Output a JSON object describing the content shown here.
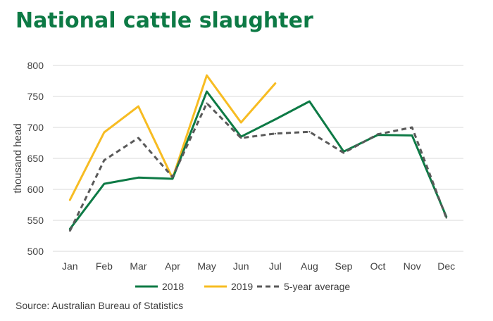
{
  "title": "National cattle slaughter",
  "source": "Source: Australian Bureau of Statistics",
  "chart_data": {
    "type": "line",
    "title": "National cattle slaughter",
    "ylabel": "thousand head",
    "xlabel": "",
    "categories": [
      "Jan",
      "Feb",
      "Mar",
      "Apr",
      "May",
      "Jun",
      "Jul",
      "Aug",
      "Sep",
      "Oct",
      "Nov",
      "Dec"
    ],
    "ylim": [
      500,
      800
    ],
    "yticks": [
      500,
      550,
      600,
      650,
      700,
      750,
      800
    ],
    "grid": true,
    "legend_position": "bottom",
    "series": [
      {
        "name": "2018",
        "color": "#0d7a45",
        "style": "solid",
        "values": [
          536,
          609,
          619,
          617,
          758,
          685,
          713,
          742,
          661,
          688,
          687,
          556
        ]
      },
      {
        "name": "2019",
        "color": "#f7bc22",
        "style": "solid",
        "values": [
          583,
          692,
          734,
          618,
          784,
          708,
          771,
          null,
          null,
          null,
          null,
          null
        ]
      },
      {
        "name": "5-year average",
        "color": "#595959",
        "style": "dashed",
        "values": [
          533,
          647,
          683,
          620,
          739,
          683,
          690,
          693,
          659,
          689,
          700,
          554
        ]
      }
    ]
  }
}
